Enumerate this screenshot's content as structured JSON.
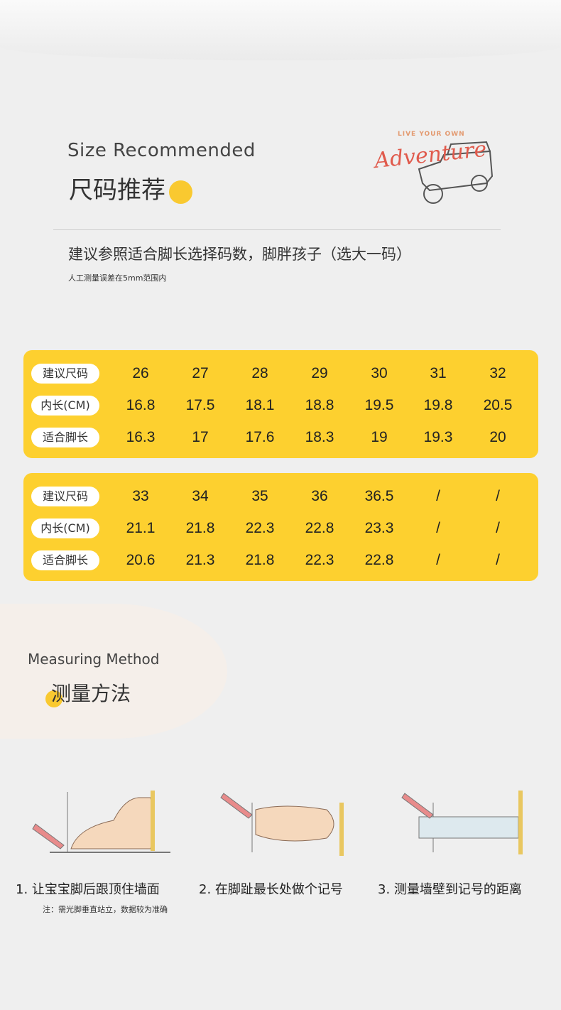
{
  "header": {
    "en_title": "Size Recommended",
    "cn_title": "尺码推荐"
  },
  "logo": {
    "small_text": "LIVE YOUR OWN",
    "big_text": "Adventure"
  },
  "advice": {
    "main": "建议参照适合脚长选择码数，脚胖孩子（选大一码）",
    "sub": "人工测量误差在5mm范围内"
  },
  "size_tables": [
    {
      "rows": [
        {
          "label": "建议尺码",
          "values": [
            "26",
            "27",
            "28",
            "29",
            "30",
            "31",
            "32"
          ]
        },
        {
          "label": "内长(CM)",
          "values": [
            "16.8",
            "17.5",
            "18.1",
            "18.8",
            "19.5",
            "19.8",
            "20.5"
          ]
        },
        {
          "label": "适合脚长",
          "values": [
            "16.3",
            "17",
            "17.6",
            "18.3",
            "19",
            "19.3",
            "20"
          ]
        }
      ]
    },
    {
      "rows": [
        {
          "label": "建议尺码",
          "values": [
            "33",
            "34",
            "35",
            "36",
            "36.5",
            "/",
            "/"
          ]
        },
        {
          "label": "内长(CM)",
          "values": [
            "21.1",
            "21.8",
            "22.3",
            "22.8",
            "23.3",
            "/",
            "/"
          ]
        },
        {
          "label": "适合脚长",
          "values": [
            "20.6",
            "21.3",
            "21.8",
            "22.3",
            "22.8",
            "/",
            "/"
          ]
        }
      ]
    }
  ],
  "method": {
    "en_title": "Measuring Method",
    "cn_title": "测量方法",
    "steps": [
      "1.  让宝宝脚后跟顶住墙面",
      "2.  在脚趾最长处做个记号",
      "3.  测量墙壁到记号的距离"
    ],
    "note": "注：需光脚垂直站立，数据较为准确"
  },
  "colors": {
    "accent": "#fdd02f",
    "logo_red": "#e05a4c"
  }
}
